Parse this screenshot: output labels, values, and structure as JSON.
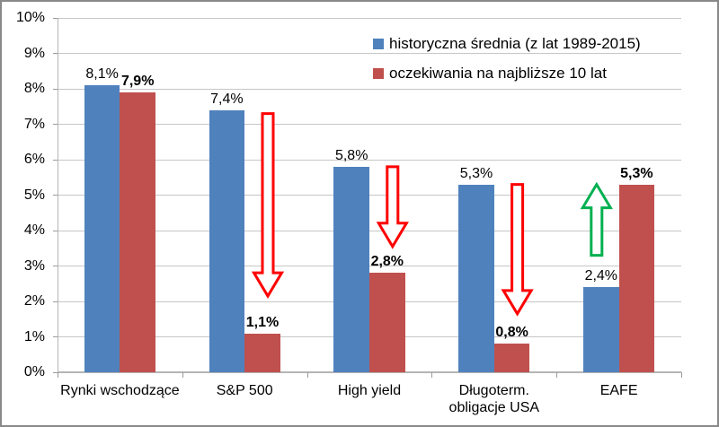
{
  "chart_data": {
    "type": "bar",
    "title": "",
    "categories": [
      "Rynki wschodzące",
      "S&P 500",
      "High yield",
      "Długoterm.\nobligacje USA",
      "EAFE"
    ],
    "series": [
      {
        "name": "historyczna średnia (z lat 1989-2015)",
        "color": "#4f81bd",
        "values": [
          8.1,
          7.4,
          5.8,
          5.3,
          2.4
        ],
        "labels": [
          "8,1%",
          "7,4%",
          "5,8%",
          "5,3%",
          "2,4%"
        ],
        "label_bold": false
      },
      {
        "name": "oczekiwania na najbliższe 10 lat",
        "color": "#c0504d",
        "values": [
          7.9,
          1.1,
          2.8,
          0.8,
          5.3
        ],
        "labels": [
          "7,9%",
          "1,1%",
          "2,8%",
          "0,8%",
          "5,3%"
        ],
        "label_bold": true
      }
    ],
    "ylim": [
      0,
      10
    ],
    "yticks": [
      "0%",
      "1%",
      "2%",
      "3%",
      "4%",
      "5%",
      "6%",
      "7%",
      "8%",
      "9%",
      "10%"
    ],
    "grid": true,
    "legend_position": "top-right",
    "annotations": [
      {
        "category_index": 1,
        "direction": "down",
        "color": "#ff0000",
        "from_pct": 7.3,
        "to_pct": 2.15,
        "anchor_series": 1
      },
      {
        "category_index": 2,
        "direction": "down",
        "color": "#ff0000",
        "from_pct": 5.8,
        "to_pct": 3.55,
        "anchor_series": 1
      },
      {
        "category_index": 3,
        "direction": "down",
        "color": "#ff0000",
        "from_pct": 5.3,
        "to_pct": 1.65,
        "anchor_series": 1
      },
      {
        "category_index": 4,
        "direction": "up",
        "color": "#00b050",
        "from_pct": 3.3,
        "to_pct": 5.3,
        "anchor_series": 0
      }
    ]
  }
}
